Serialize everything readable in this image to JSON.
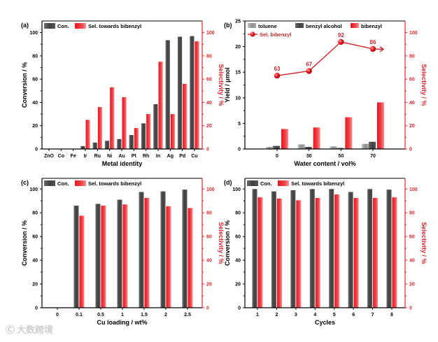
{
  "watermark": "大数跨境",
  "colors": {
    "con": "#4d4d4d",
    "sel": "#ee1c24",
    "toluene": "#9a9a9a",
    "axis_right": "#e0242b"
  },
  "chart_data": [
    {
      "panel": "(a)",
      "type": "bar",
      "xlabel": "Metal identity",
      "ylabel": "Conversion / %",
      "ylabel_right": "Selectivity / %",
      "ylim": [
        0,
        110
      ],
      "ylim_right": [
        0,
        110
      ],
      "yticks": [
        0,
        20,
        40,
        60,
        80,
        100
      ],
      "yticks_right": [
        0,
        20,
        40,
        60,
        80,
        100
      ],
      "categories": [
        "ZnO",
        "Co",
        "Fe",
        "Ir",
        "Ru",
        "Ni",
        "Au",
        "Pt",
        "Rh",
        "In",
        "Ag",
        "Pd",
        "Cu"
      ],
      "series": [
        {
          "name": "Con.",
          "axis": "left",
          "values": [
            0,
            0,
            0,
            2.5,
            5.5,
            7,
            8.5,
            12,
            22,
            38.5,
            93.5,
            96.5,
            97
          ]
        },
        {
          "name": "Sel. towards bibenzyl",
          "axis": "right",
          "values": [
            0,
            0,
            0,
            25,
            36,
            53,
            44.5,
            18,
            30,
            75,
            30,
            56,
            92.5
          ]
        }
      ],
      "legend": "top"
    },
    {
      "panel": "(b)",
      "type": "bar",
      "xlabel": "Water content / vol%",
      "ylabel": "Yield / μmol",
      "ylabel_right": "Selectivity / %",
      "ylim": [
        0,
        25
      ],
      "ylim_right": [
        0,
        110
      ],
      "yticks": [
        0,
        5,
        10,
        15,
        20,
        25
      ],
      "yticks_right": [
        0,
        20,
        40,
        60,
        80,
        100
      ],
      "categories": [
        "0",
        "30",
        "50",
        "70"
      ],
      "series": [
        {
          "name": "toluene",
          "axis": "left",
          "values": [
            0.4,
            0.9,
            0.5,
            1.0
          ]
        },
        {
          "name": "benzyl alcohol",
          "axis": "left",
          "values": [
            0.6,
            0.4,
            0.2,
            1.4
          ]
        },
        {
          "name": "bibenzyl",
          "axis": "left",
          "values": [
            3.9,
            4.2,
            6.2,
            9.1
          ]
        },
        {
          "name": "Sel. bibenzyl",
          "axis": "right",
          "type": "line",
          "values": [
            63,
            67,
            92,
            86
          ]
        }
      ],
      "data_labels": [
        "63",
        "67",
        "92",
        "86"
      ],
      "legend": "top-left"
    },
    {
      "panel": "(c)",
      "type": "bar",
      "xlabel": "Cu loading / wt%",
      "ylabel": "Conversion / %",
      "ylabel_right": "Selectivity / %",
      "ylim": [
        0,
        109
      ],
      "ylim_right": [
        0,
        109
      ],
      "yticks": [
        0,
        20,
        40,
        60,
        80,
        100
      ],
      "yticks_right": [
        0,
        20,
        40,
        60,
        80,
        100
      ],
      "categories": [
        "0",
        "0.1",
        "0.5",
        "1",
        "1.5",
        "2",
        "2.5"
      ],
      "series": [
        {
          "name": "Con.",
          "axis": "left",
          "values": [
            0,
            86,
            87.5,
            91,
            97.5,
            98,
            99.5
          ]
        },
        {
          "name": "Sel. towards bibenzyl",
          "axis": "right",
          "values": [
            0,
            77.5,
            86,
            87,
            92.5,
            85.5,
            84
          ]
        }
      ],
      "legend": "top"
    },
    {
      "panel": "(d)",
      "type": "bar",
      "xlabel": "Cycles",
      "ylabel": "Conversion / %",
      "ylabel_right": "Selectivity / %",
      "ylim": [
        0,
        109
      ],
      "ylim_right": [
        0,
        109
      ],
      "yticks": [
        0,
        20,
        40,
        60,
        80,
        100
      ],
      "yticks_right": [
        0,
        20,
        40,
        60,
        80,
        100
      ],
      "categories": [
        "1",
        "2",
        "3",
        "4",
        "5",
        "6",
        "7",
        "8"
      ],
      "series": [
        {
          "name": "Con.",
          "axis": "left",
          "values": [
            100,
            98,
            99,
            100,
            100,
            97.5,
            100,
            99.5
          ]
        },
        {
          "name": "Sel. towards bibenzyl",
          "axis": "right",
          "values": [
            93,
            92,
            90.5,
            92.5,
            95.5,
            92.5,
            92.5,
            93
          ]
        }
      ],
      "legend": "top"
    }
  ]
}
